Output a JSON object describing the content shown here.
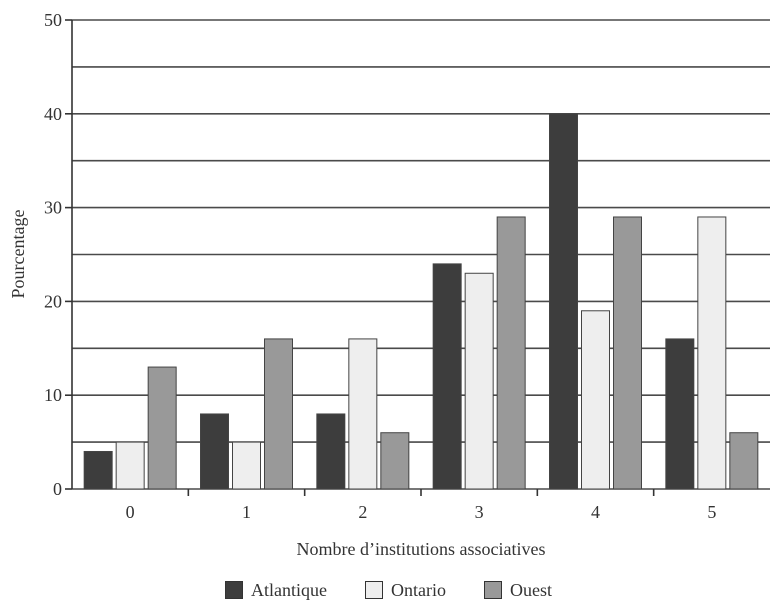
{
  "chart_data": {
    "type": "bar",
    "title": "",
    "xlabel": "Nombre d’institutions associatives",
    "ylabel": "Pourcentage",
    "categories": [
      "0",
      "1",
      "2",
      "3",
      "4",
      "5"
    ],
    "ylim": [
      0,
      50
    ],
    "yticks": [
      0,
      10,
      20,
      30,
      40,
      50
    ],
    "grid": true,
    "legend_position": "bottom",
    "series": [
      {
        "name": "Atlantique",
        "color": "#3d3d3d",
        "values": [
          4,
          8,
          8,
          24,
          40,
          16
        ]
      },
      {
        "name": "Ontario",
        "color": "#eeeeee",
        "values": [
          5,
          5,
          16,
          23,
          19,
          29
        ]
      },
      {
        "name": "Ouest",
        "color": "#999999",
        "values": [
          13,
          16,
          6,
          29,
          29,
          6
        ]
      }
    ]
  }
}
